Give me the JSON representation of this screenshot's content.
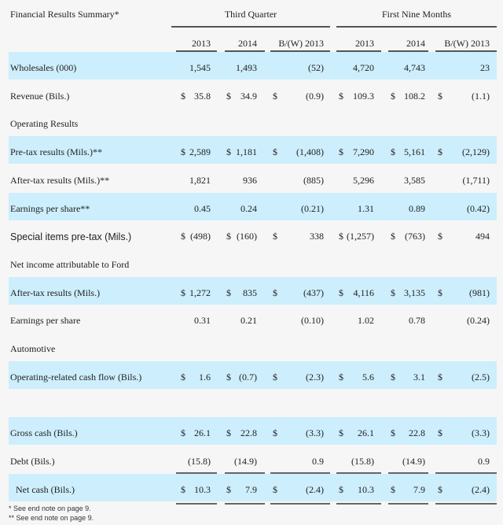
{
  "header": {
    "title": "Financial Results Summary*",
    "groups": [
      "Third Quarter",
      "First Nine Months"
    ],
    "columns": [
      "2013",
      "2014",
      "B/(W) 2013",
      "2013",
      "2014",
      "B/(W) 2013"
    ]
  },
  "rows": [
    {
      "label": "Wholesales (000)",
      "band": true,
      "dollar": false,
      "values": [
        "1,545",
        "1,493",
        "(52)",
        "4,720",
        "4,743",
        "23"
      ]
    },
    {
      "label": "Revenue (Bils.)",
      "band": false,
      "dollar": true,
      "values": [
        "35.8",
        "34.9",
        "(0.9)",
        "109.3",
        "108.2",
        "(1.1)"
      ]
    },
    {
      "label": "Operating Results",
      "band": false,
      "section": true
    },
    {
      "label": "Pre-tax results (Mils.)**",
      "band": true,
      "dollar": true,
      "values": [
        "2,589",
        "1,181",
        "(1,408)",
        "7,290",
        "5,161",
        "(2,129)"
      ]
    },
    {
      "label": "After-tax results (Mils.)**",
      "band": false,
      "dollar": false,
      "values": [
        "1,821",
        "936",
        "(885)",
        "5,296",
        "3,585",
        "(1,711)"
      ]
    },
    {
      "label": "Earnings per share**",
      "band": true,
      "dollar": false,
      "values": [
        "0.45",
        "0.24",
        "(0.21)",
        "1.31",
        "0.89",
        "(0.42)"
      ]
    },
    {
      "label": "Special items pre-tax (Mils.)",
      "band": false,
      "dollar": true,
      "sans": true,
      "values": [
        "(498)",
        "(160)",
        "338",
        "(1,257)",
        "(763)",
        "494"
      ]
    },
    {
      "label": "Net income attributable to Ford",
      "band": false,
      "section": true
    },
    {
      "label": "After-tax results (Mils.)",
      "band": true,
      "dollar": true,
      "values": [
        "1,272",
        "835",
        "(437)",
        "4,116",
        "3,135",
        "(981)"
      ]
    },
    {
      "label": "Earnings per share",
      "band": false,
      "dollar": false,
      "values": [
        "0.31",
        "0.21",
        "(0.10)",
        "1.02",
        "0.78",
        "(0.24)"
      ]
    },
    {
      "label": "Automotive",
      "band": false,
      "section": true
    },
    {
      "label": "Operating-related cash flow (Bils.)",
      "band": true,
      "dollar": true,
      "values": [
        "1.6",
        "(0.7)",
        "(2.3)",
        "5.6",
        "3.1",
        "(2.5)"
      ]
    },
    {
      "label": "",
      "band": false,
      "section": true
    },
    {
      "label": "Gross cash (Bils.)",
      "band": true,
      "dollar": true,
      "values": [
        "26.1",
        "22.8",
        "(3.3)",
        "26.1",
        "22.8",
        "(3.3)"
      ]
    },
    {
      "label": "Debt (Bils.)",
      "band": false,
      "dollar": false,
      "underline": "single",
      "values": [
        "(15.8)",
        "(14.9)",
        "0.9",
        "(15.8)",
        "(14.9)",
        "0.9"
      ]
    },
    {
      "label": "Net cash (Bils.)",
      "band": true,
      "dollar": true,
      "indent": true,
      "underline": "double",
      "values": [
        "10.3",
        "7.9",
        "(2.4)",
        "10.3",
        "7.9",
        "(2.4)"
      ]
    }
  ],
  "dollar_sign": "$",
  "footnotes": [
    "* See end note on page 9.",
    "** See end note on page 9."
  ],
  "colors": {
    "band": "#cdeefc",
    "background": "#f6f6f6"
  }
}
